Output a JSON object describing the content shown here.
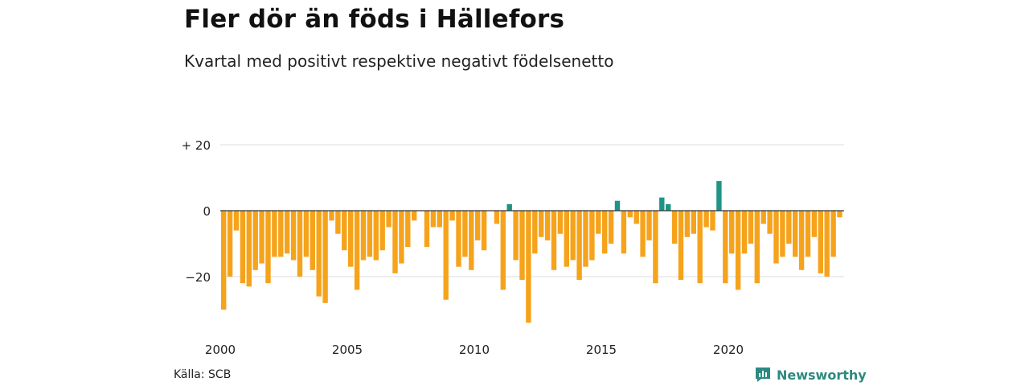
{
  "header": {
    "title": "Fler dör än föds i Hällefors",
    "subtitle": "Kvartal med positivt respektive negativt födelsenetto"
  },
  "footer": {
    "source": "Källa: SCB",
    "brand": "Newsworthy",
    "brand_icon": "newsworthy-logo-icon",
    "brand_color": "#2c8a7f"
  },
  "colors": {
    "positive": "#1f9384",
    "negative": "#f6a31c",
    "grid": "#dddddd",
    "zero_line": "#333333"
  },
  "chart_data": {
    "type": "bar",
    "title": "Fler dör än föds i Hällefors",
    "subtitle": "Kvartal med positivt respektive negativt födelsenetto",
    "xlabel": "",
    "ylabel": "",
    "x_start": 2000,
    "x_ticks": [
      "2000",
      "2005",
      "2010",
      "2015",
      "2020"
    ],
    "y_ticks": [
      {
        "value": 20,
        "label": "+ 20"
      },
      {
        "value": 0,
        "label": "0"
      },
      {
        "value": -20,
        "label": "−20"
      }
    ],
    "ylim": [
      -35,
      20
    ],
    "grid": true,
    "values": [
      -30,
      -20,
      -6,
      -22,
      -23,
      -18,
      -16,
      -22,
      -14,
      -14,
      -13,
      -15,
      -20,
      -14,
      -18,
      -26,
      -28,
      -3,
      -7,
      -12,
      -17,
      -24,
      -15,
      -14,
      -15,
      -12,
      -5,
      -19,
      -16,
      -11,
      -3,
      0,
      -11,
      -5,
      -5,
      -27,
      -3,
      -17,
      -14,
      -18,
      -9,
      -12,
      0,
      -4,
      -24,
      2,
      -15,
      -21,
      -34,
      -13,
      -8,
      -9,
      -18,
      -7,
      -17,
      -15,
      -21,
      -17,
      -15,
      -7,
      -13,
      -10,
      3,
      -13,
      -2,
      -4,
      -14,
      -9,
      -22,
      4,
      2,
      -10,
      -21,
      -8,
      -7,
      -22,
      -5,
      -6,
      9,
      -22,
      -13,
      -24,
      -13,
      -10,
      -22,
      -4,
      -7,
      -16,
      -14,
      -10,
      -14,
      -18,
      -14,
      -8,
      -19,
      -20,
      -14,
      -2
    ]
  }
}
